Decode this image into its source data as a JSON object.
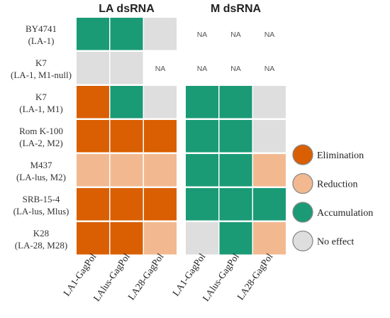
{
  "chart_data": {
    "type": "heatmap",
    "panels": [
      {
        "title": "LA dsRNA",
        "columns": [
          "LA1-GagPol",
          "LAlus-GagPol",
          "LA28-GagPol"
        ],
        "rows": [
          [
            "Accumulation",
            "Accumulation",
            "No effect"
          ],
          [
            "No effect",
            "No effect",
            "NA"
          ],
          [
            "Elimination",
            "Accumulation",
            "No effect"
          ],
          [
            "Elimination",
            "Elimination",
            "Elimination"
          ],
          [
            "Reduction",
            "Reduction",
            "Reduction"
          ],
          [
            "Elimination",
            "Elimination",
            "Elimination"
          ],
          [
            "Elimination",
            "Elimination",
            "Reduction"
          ]
        ]
      },
      {
        "title": "M dsRNA",
        "columns": [
          "LA1-GagPol",
          "LAlus-GagPol",
          "LA28-GagPol"
        ],
        "rows": [
          [
            "NA",
            "NA",
            "NA"
          ],
          [
            "NA",
            "NA",
            "NA"
          ],
          [
            "Accumulation",
            "Accumulation",
            "No effect"
          ],
          [
            "Accumulation",
            "Accumulation",
            "No effect"
          ],
          [
            "Accumulation",
            "Accumulation",
            "Reduction"
          ],
          [
            "Accumulation",
            "Accumulation",
            "Accumulation"
          ],
          [
            "No effect",
            "Accumulation",
            "Reduction"
          ]
        ]
      }
    ],
    "row_labels": [
      [
        "BY4741",
        "(LA-1)"
      ],
      [
        "K7",
        "(LA-1, M1-null)"
      ],
      [
        "K7",
        "(LA-1, M1)"
      ],
      [
        "Rom K-100",
        "(LA-2, M2)"
      ],
      [
        "M437",
        "(LA-lus, M2)"
      ],
      [
        "SRB-15-4",
        "(LA-lus, Mlus)"
      ],
      [
        "K28",
        "(LA-28, M28)"
      ]
    ],
    "na_label": "NA",
    "legend": {
      "placement": "right",
      "items": [
        {
          "label": "Elimination",
          "color": "#d95f02"
        },
        {
          "label": "Reduction",
          "color": "#f2b990"
        },
        {
          "label": "Accumulation",
          "color": "#1b9a76"
        },
        {
          "label": "No effect",
          "color": "#dedede"
        }
      ]
    },
    "colors": {
      "Elimination": "#d95f02",
      "Reduction": "#f2b990",
      "Accumulation": "#1b9a76",
      "No effect": "#dedede",
      "NA": "#ffffff"
    }
  }
}
